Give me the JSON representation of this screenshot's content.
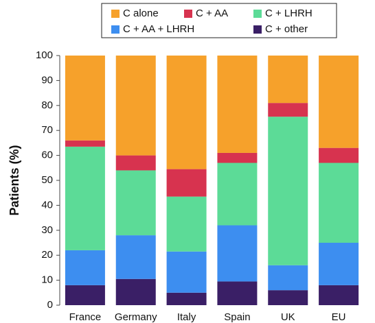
{
  "chart_data": {
    "type": "stacked_bar",
    "y_label": "Patients (%)",
    "categories": [
      "France",
      "Germany",
      "Italy",
      "Spain",
      "UK",
      "EU"
    ],
    "series": [
      {
        "name": "C alone",
        "color": "#f6a12b",
        "values": [
          34,
          40,
          45.5,
          39,
          19,
          37
        ]
      },
      {
        "name": "C + AA",
        "color": "#d7334f",
        "values": [
          2.5,
          6,
          11,
          4,
          5.5,
          6
        ]
      },
      {
        "name": "C + LHRH",
        "color": "#5cdb97",
        "values": [
          41.5,
          26,
          22,
          25,
          59.5,
          32
        ]
      },
      {
        "name": "C + AA + LHRH",
        "color": "#3d8ef0",
        "values": [
          14,
          17.5,
          16.5,
          22.5,
          10,
          17
        ]
      },
      {
        "name": "C + other",
        "color": "#3a1f66",
        "values": [
          8,
          10.5,
          5,
          9.5,
          6,
          8
        ]
      }
    ],
    "ylim": [
      0,
      100
    ],
    "yticks": [
      0,
      10,
      20,
      30,
      40,
      50,
      60,
      70,
      80,
      90,
      100
    ]
  }
}
